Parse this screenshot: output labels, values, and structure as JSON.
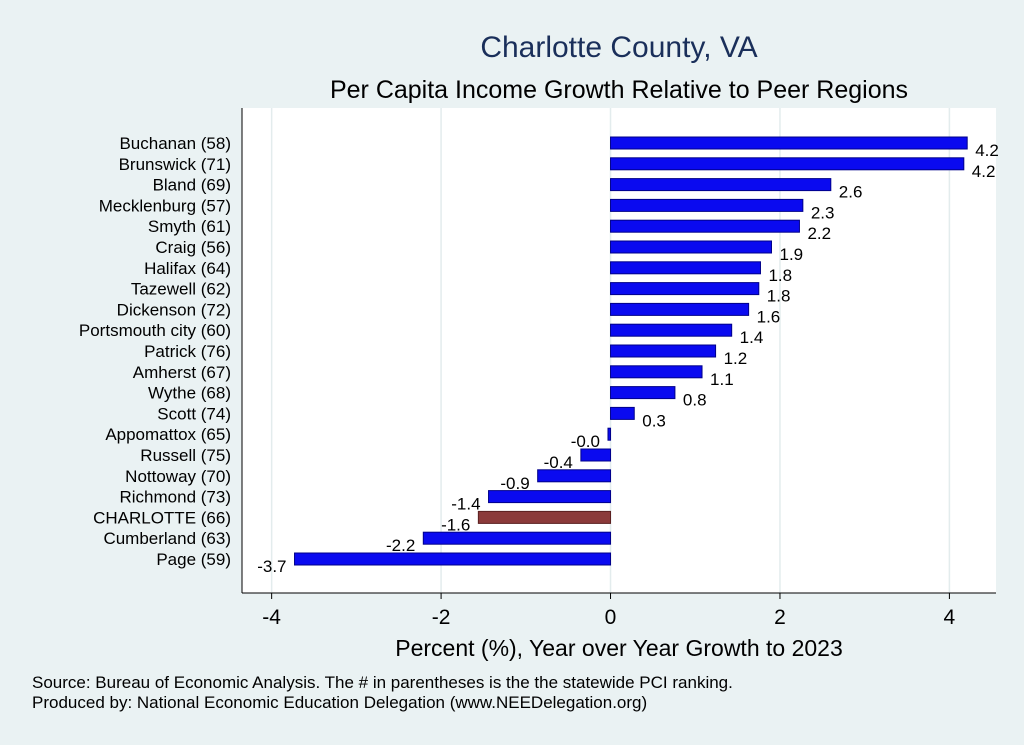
{
  "chart_data": {
    "type": "bar",
    "orientation": "horizontal",
    "title": "Charlotte County, VA",
    "subtitle": "Per Capita Income Growth Relative to Peer Regions",
    "xlabel": "Percent (%), Year over Year Growth to 2023",
    "ylabel": "",
    "xlim": [
      -4.35,
      4.55
    ],
    "xticks": [
      -4,
      -2,
      0,
      2,
      4
    ],
    "xtick_labels": [
      "-4",
      "-2",
      "0",
      "2",
      "4"
    ],
    "grid": true,
    "categories": [
      "Buchanan (58)",
      "Brunswick (71)",
      "Bland (69)",
      "Mecklenburg (57)",
      "Smyth (61)",
      "Craig (56)",
      "Halifax (64)",
      "Tazewell (62)",
      "Dickenson (72)",
      "Portsmouth city (60)",
      "Patrick (76)",
      "Amherst (67)",
      "Wythe (68)",
      "Scott (74)",
      "Appomattox (65)",
      "Russell (75)",
      "Nottoway (70)",
      "Richmond (73)",
      "CHARLOTTE (66)",
      "Cumberland (63)",
      "Page (59)"
    ],
    "values": [
      4.21,
      4.17,
      2.6,
      2.27,
      2.23,
      1.9,
      1.77,
      1.75,
      1.63,
      1.43,
      1.24,
      1.08,
      0.76,
      0.28,
      -0.03,
      -0.35,
      -0.86,
      -1.44,
      -1.56,
      -2.21,
      -3.73
    ],
    "value_labels": [
      "4.2",
      "4.2",
      "2.6",
      "2.3",
      "2.2",
      "1.9",
      "1.8",
      "1.8",
      "1.6",
      "1.4",
      "1.2",
      "1.1",
      "0.8",
      "0.3",
      "-0.0",
      "-0.4",
      "-0.9",
      "-1.4",
      "-1.6",
      "-2.2",
      "-3.7"
    ],
    "highlight": "CHARLOTTE (66)",
    "colors": {
      "bar": "#0a0af0",
      "highlight": "#8b3a3a",
      "background": "#eaf2f3",
      "plot_background": "#ffffff",
      "grid": "#e3eced",
      "title": "#1a2f5a"
    }
  },
  "notes": [
    "Source: Bureau of Economic Analysis. The # in parentheses is the the statewide PCI ranking.",
    "Produced by: National Economic Education Delegation (www.NEEDelegation.org)"
  ]
}
